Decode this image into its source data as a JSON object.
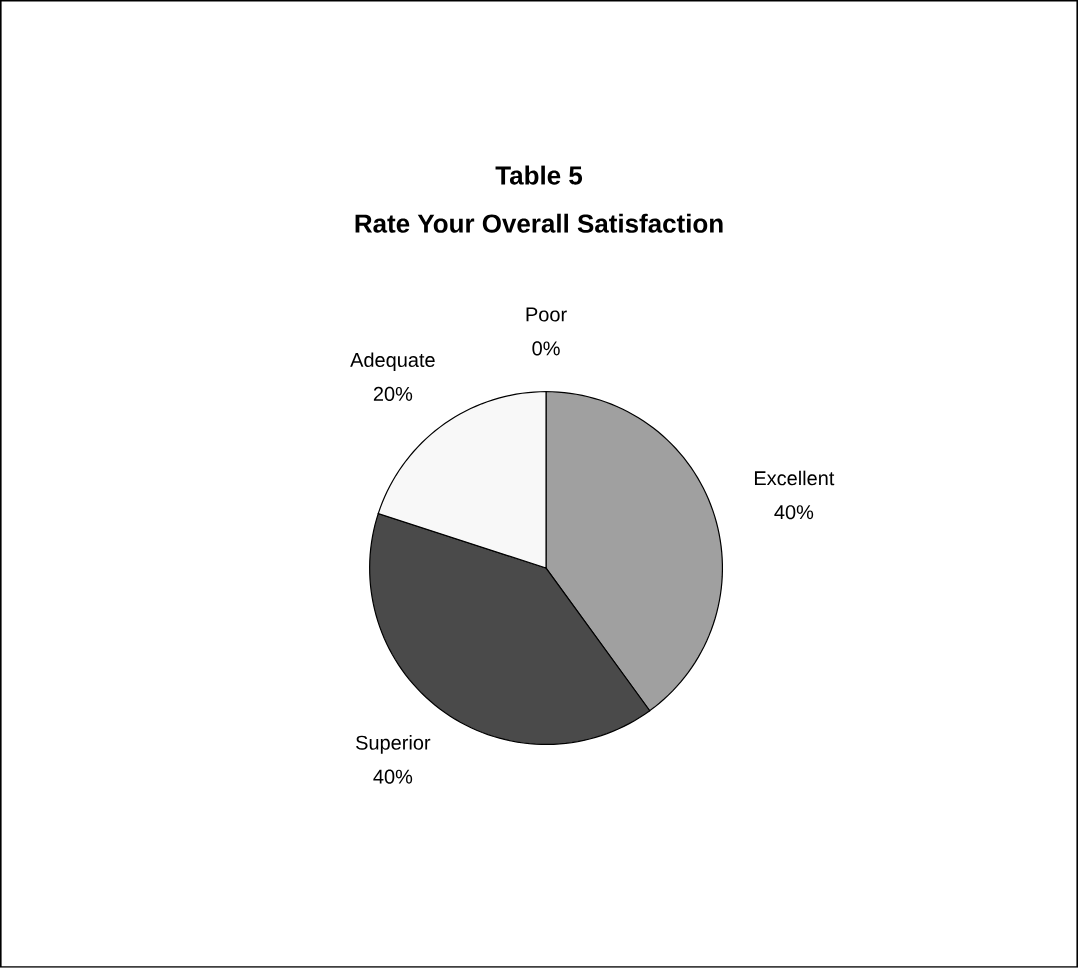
{
  "chart_data": {
    "type": "pie",
    "title": "Table 5",
    "subtitle": "Rate Your Overall Satisfaction",
    "categories": [
      "Excellent",
      "Superior",
      "Adequate",
      "Poor"
    ],
    "values": [
      40,
      40,
      20,
      0
    ],
    "value_labels": [
      "40%",
      "40%",
      "20%",
      "0%"
    ],
    "colors": [
      "#a0a0a0",
      "#4a4a4a",
      "#f8f8f8",
      "#ffffff"
    ]
  }
}
